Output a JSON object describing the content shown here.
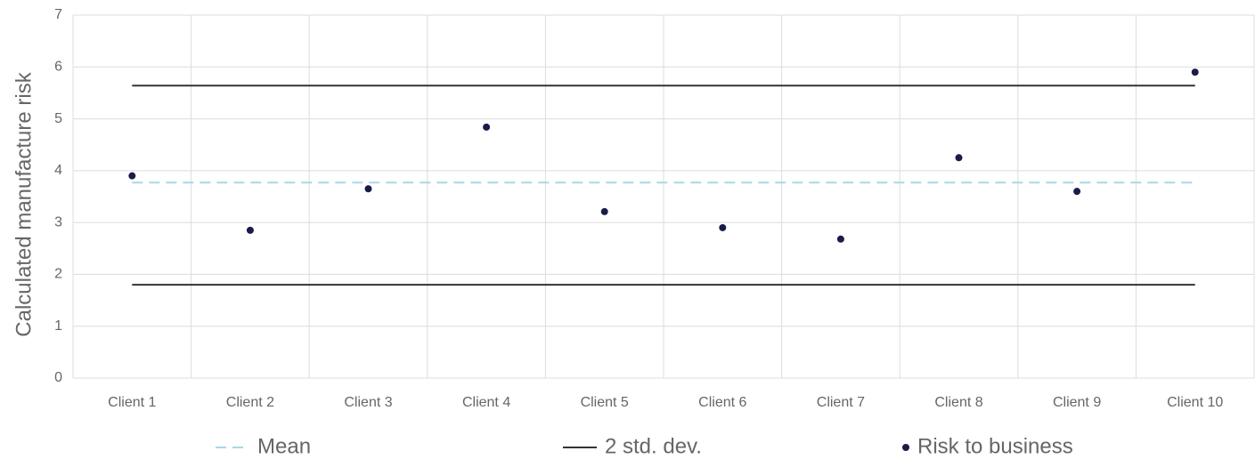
{
  "chart_data": {
    "type": "scatter",
    "y_label": "Calculated manufacture risk",
    "categories": [
      "Client 1",
      "Client 2",
      "Client 3",
      "Client 4",
      "Client 5",
      "Client 6",
      "Client 7",
      "Client 8",
      "Client 9",
      "Client 10"
    ],
    "ylim": [
      0,
      7
    ],
    "yticks": [
      0,
      1,
      2,
      3,
      4,
      5,
      6,
      7
    ],
    "grid": true,
    "legend": "bottom",
    "series": [
      {
        "name": "Mean",
        "color": "#a8d8e8",
        "style": "dashed",
        "values": [
          3.77,
          3.77,
          3.77,
          3.77,
          3.77,
          3.77,
          3.77,
          3.77,
          3.77,
          3.77
        ]
      },
      {
        "name": "2 std. dev.",
        "color": "#333333",
        "style": "solid",
        "upper": [
          5.64,
          5.64,
          5.64,
          5.64,
          5.64,
          5.64,
          5.64,
          5.64,
          5.64,
          5.64
        ],
        "lower": [
          1.8,
          1.8,
          1.8,
          1.8,
          1.8,
          1.8,
          1.8,
          1.8,
          1.8,
          1.8
        ]
      },
      {
        "name": "Risk to business",
        "color": "#1b1b4b",
        "style": "points",
        "values": [
          3.9,
          2.85,
          3.65,
          4.84,
          3.21,
          2.9,
          2.68,
          4.25,
          3.6,
          5.9
        ]
      }
    ]
  }
}
